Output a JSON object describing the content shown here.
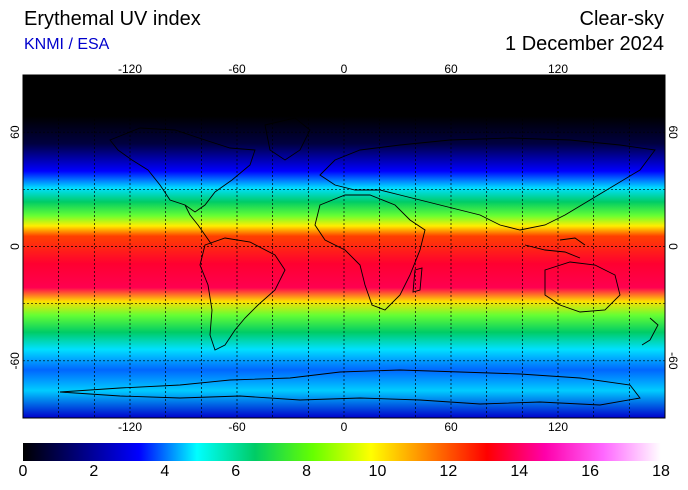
{
  "header": {
    "title": "Erythemal UV index",
    "credit": "KNMI / ESA",
    "condition": "Clear-sky",
    "date": "1 December 2024"
  },
  "map": {
    "lon_ticks": [
      "-120",
      "-60",
      "0",
      "60",
      "120"
    ],
    "lat_ticks": [
      "60",
      "0",
      "-60"
    ],
    "lon_values": [
      -120,
      -60,
      0,
      60,
      120
    ],
    "lat_values": [
      60,
      0,
      -60
    ],
    "lon_range": [
      -180,
      180
    ],
    "lat_range": [
      -90,
      90
    ],
    "grid_lon_step": 20,
    "grid_lat_step": 30
  },
  "colorbar": {
    "labels": [
      "0",
      "2",
      "4",
      "6",
      "8",
      "10",
      "12",
      "14",
      "16",
      "18"
    ],
    "min": 0,
    "max": 18,
    "stops": [
      "#000000",
      "#000080",
      "#0000ff",
      "#00ffff",
      "#00cc66",
      "#66ff00",
      "#ffff00",
      "#ff8000",
      "#ff0000",
      "#ff00aa",
      "#ff66ff",
      "#ffffff"
    ]
  }
}
